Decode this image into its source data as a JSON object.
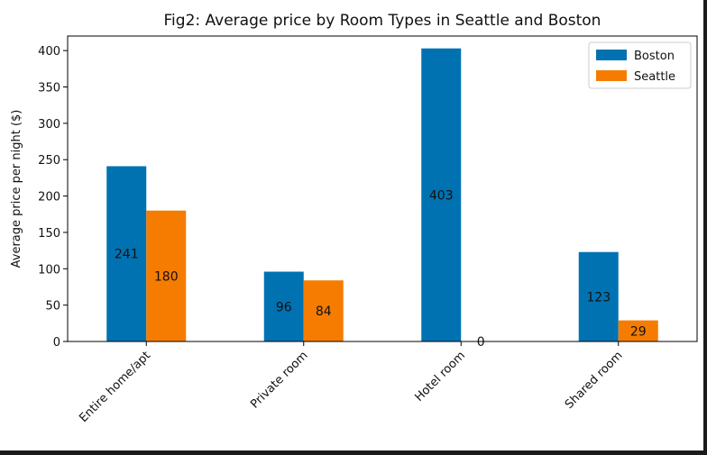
{
  "chart_data": {
    "type": "bar",
    "title": "Fig2: Average price by Room Types in Seattle and Boston",
    "xlabel": "",
    "ylabel": "Average price per night ($)",
    "categories": [
      "Entire home/apt",
      "Private room",
      "Hotel room",
      "Shared room"
    ],
    "series": [
      {
        "name": "Boston",
        "values": [
          241,
          96,
          403,
          123
        ],
        "color": "#0072b2"
      },
      {
        "name": "Seattle",
        "values": [
          180,
          84,
          0,
          29
        ],
        "color": "#f57c00"
      }
    ],
    "data_labels": {
      "Boston": [
        "241",
        "96",
        "403",
        "123"
      ],
      "Seattle": [
        "180",
        "84",
        "0",
        "29"
      ]
    },
    "ylim": [
      0,
      420
    ],
    "yticks": [
      0,
      50,
      100,
      150,
      200,
      250,
      300,
      350,
      400
    ],
    "grid": false,
    "legend_position": "top-right"
  }
}
